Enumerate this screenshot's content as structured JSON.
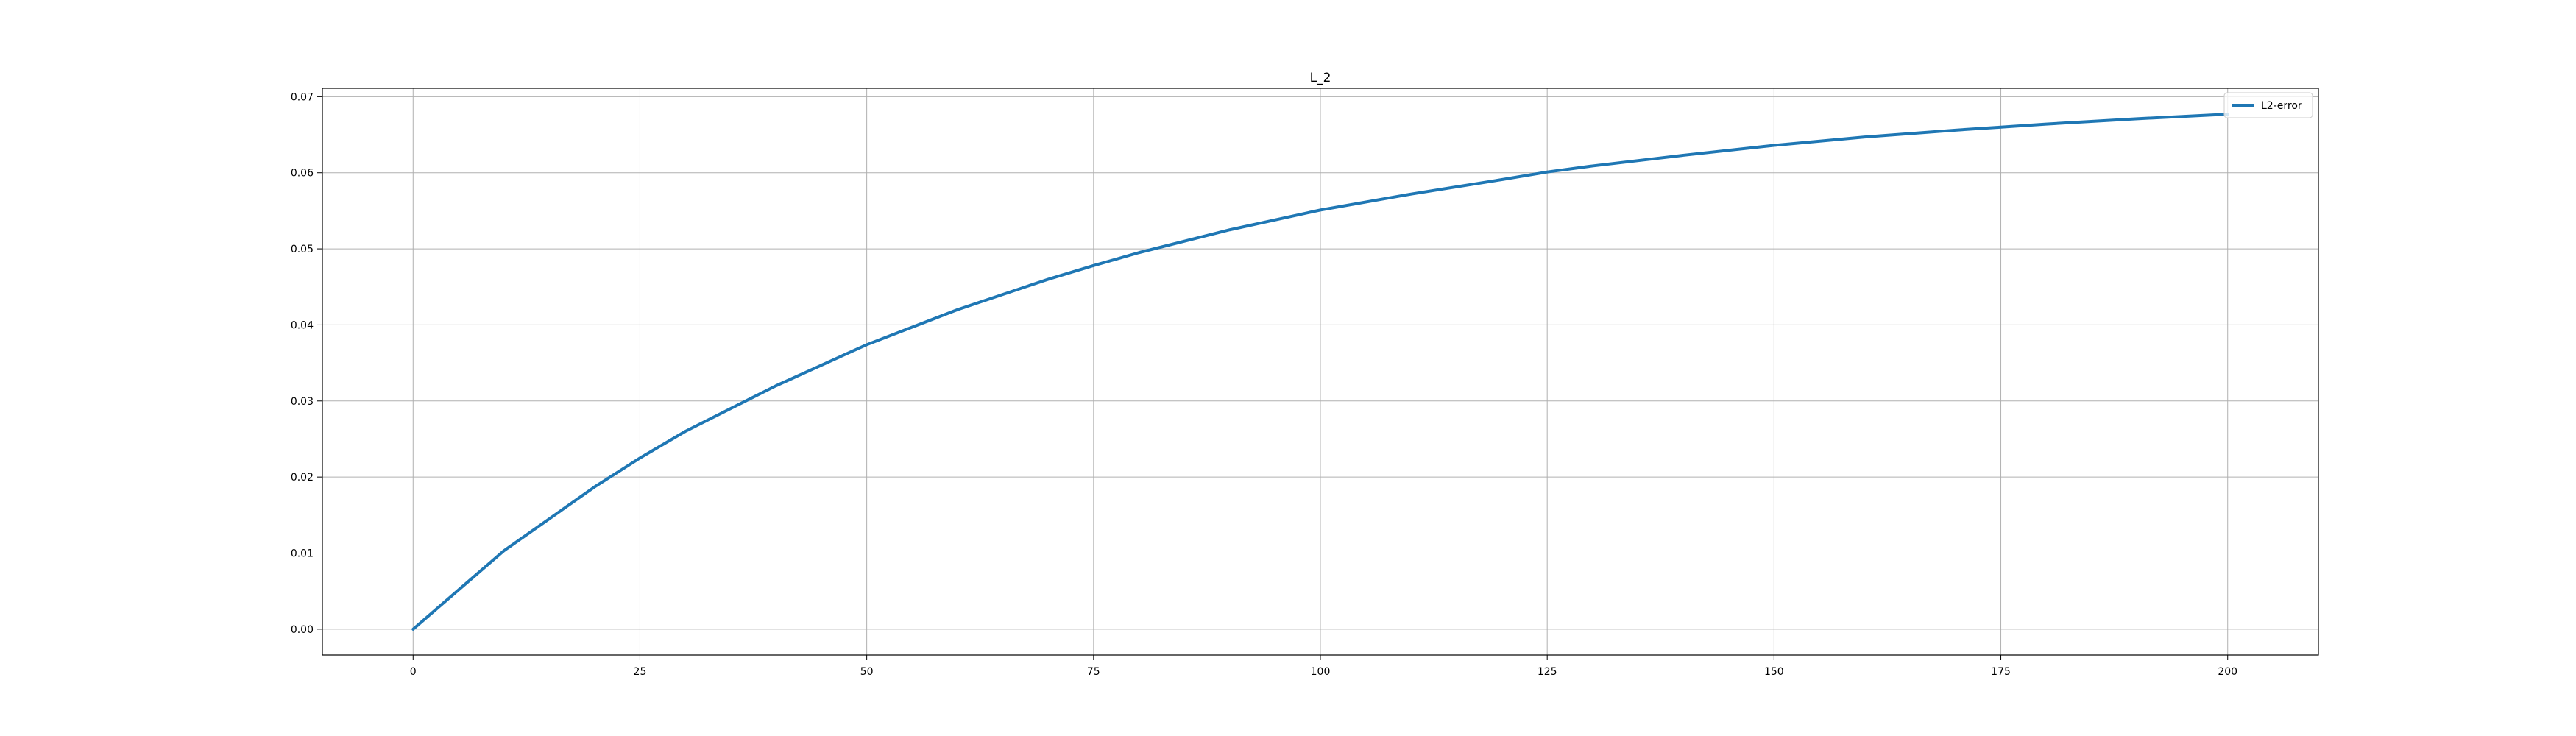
{
  "chart_data": {
    "type": "line",
    "title": "L_2",
    "xlabel": "",
    "ylabel": "",
    "xlim": [
      -10,
      210
    ],
    "ylim": [
      -0.0034,
      0.0711
    ],
    "x_ticks": [
      0,
      25,
      50,
      75,
      100,
      125,
      150,
      175,
      200
    ],
    "x_tick_labels": [
      "0",
      "25",
      "50",
      "75",
      "100",
      "125",
      "150",
      "175",
      "200"
    ],
    "y_ticks": [
      0.0,
      0.01,
      0.02,
      0.03,
      0.04,
      0.05,
      0.06,
      0.07
    ],
    "y_tick_labels": [
      "0.00",
      "0.01",
      "0.02",
      "0.03",
      "0.04",
      "0.05",
      "0.06",
      "0.07"
    ],
    "grid": true,
    "legend_position": "top-right",
    "colors": {
      "series": "#1f77b4",
      "grid": "#b0b0b0",
      "axes": "#000000"
    },
    "series": [
      {
        "name": "L2-error",
        "x": [
          0,
          10,
          20,
          25,
          30,
          40,
          50,
          60,
          70,
          75,
          80,
          90,
          100,
          110,
          120,
          125,
          130,
          140,
          150,
          160,
          170,
          175,
          180,
          190,
          200
        ],
        "values": [
          0.0,
          0.0103,
          0.0187,
          0.0225,
          0.026,
          0.032,
          0.0374,
          0.042,
          0.046,
          0.0478,
          0.0495,
          0.0525,
          0.0551,
          0.0572,
          0.0591,
          0.0601,
          0.0609,
          0.0623,
          0.0636,
          0.0647,
          0.0656,
          0.066,
          0.0664,
          0.0671,
          0.0677
        ]
      }
    ]
  }
}
